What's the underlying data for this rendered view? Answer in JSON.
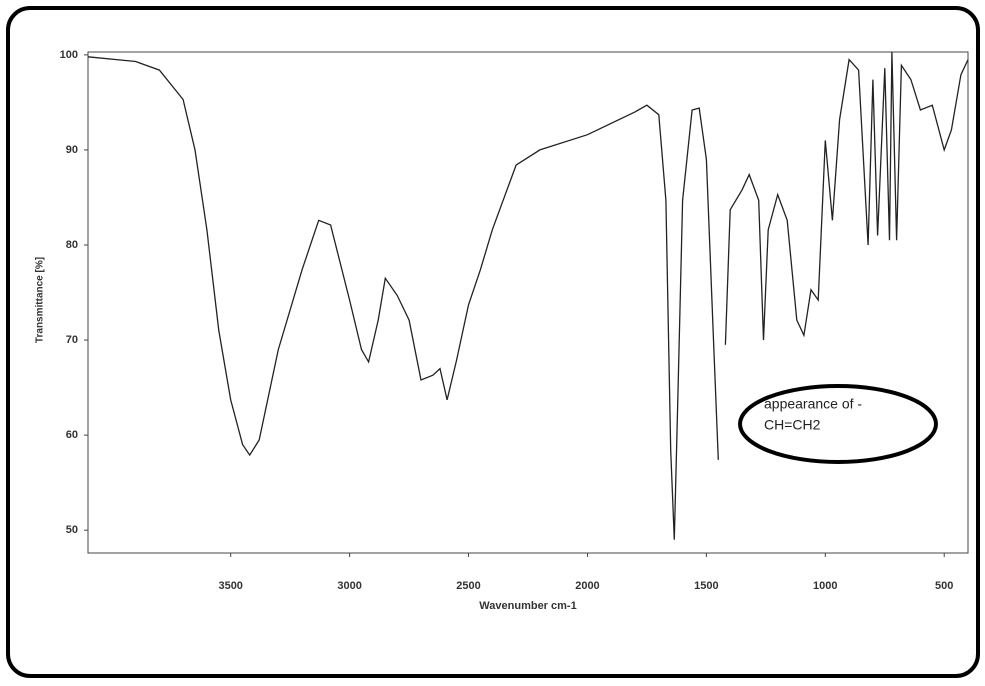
{
  "chart_data": {
    "type": "line",
    "xlabel": "Wavenumber cm-1",
    "ylabel": "Transmittance [%]",
    "annotation": [
      "appearance of -",
      "CH=CH2"
    ],
    "xlim": [
      4100,
      400
    ],
    "ylim": [
      47.6,
      100.3
    ],
    "xticks": [
      3500,
      3000,
      2500,
      2000,
      1500,
      1000,
      500
    ],
    "yticks": [
      100,
      90,
      80,
      70,
      60,
      50
    ],
    "x": [
      4100,
      3900,
      3800,
      3700,
      3650,
      3600,
      3550,
      3500,
      3450,
      3420,
      3380,
      3300,
      3200,
      3130,
      3080,
      3000,
      2950,
      2920,
      2880,
      2850,
      2800,
      2750,
      2700,
      2650,
      2620,
      2590,
      2550,
      2500,
      2450,
      2400,
      2300,
      2200,
      2000,
      1800,
      1750,
      1700,
      1670,
      1650,
      1635,
      1620,
      1600,
      1560,
      1530,
      1500,
      1470,
      1450,
      1435,
      1420,
      1400,
      1350,
      1320,
      1280,
      1260,
      1240,
      1200,
      1160,
      1120,
      1090,
      1060,
      1030,
      1000,
      970,
      940,
      900,
      860,
      820,
      800,
      780,
      750,
      730,
      720,
      700,
      680,
      640,
      600,
      550,
      500,
      470,
      430,
      400
    ],
    "series": [
      {
        "color": "#222222",
        "values": [
          99.8,
          99.3,
          98.4,
          95.3,
          90,
          81.6,
          71,
          63.7,
          59,
          57.9,
          59.5,
          69,
          77.4,
          82.6,
          82.1,
          74.2,
          69,
          67.7,
          72.1,
          76.5,
          74.7,
          72.1,
          65.8,
          66.3,
          67,
          63.7,
          67.9,
          73.7,
          77.4,
          81.6,
          88.4,
          90,
          91.6,
          94,
          94.7,
          93.7,
          84.7,
          58.4,
          49,
          63.7,
          84.7,
          94.2,
          94.4,
          89,
          70,
          57.4,
          null,
          69.5,
          83.7,
          85.8,
          87.4,
          84.7,
          70,
          81.6,
          85.3,
          82.6,
          72.1,
          70.5,
          75.3,
          74.2,
          91,
          82.6,
          93.2,
          99.5,
          98.4,
          80,
          97.4,
          81,
          98.6,
          80.5,
          100.3,
          80.5,
          98.9,
          97.4,
          94.2,
          94.7,
          90,
          92.1,
          97.9,
          99.5
        ]
      }
    ]
  }
}
